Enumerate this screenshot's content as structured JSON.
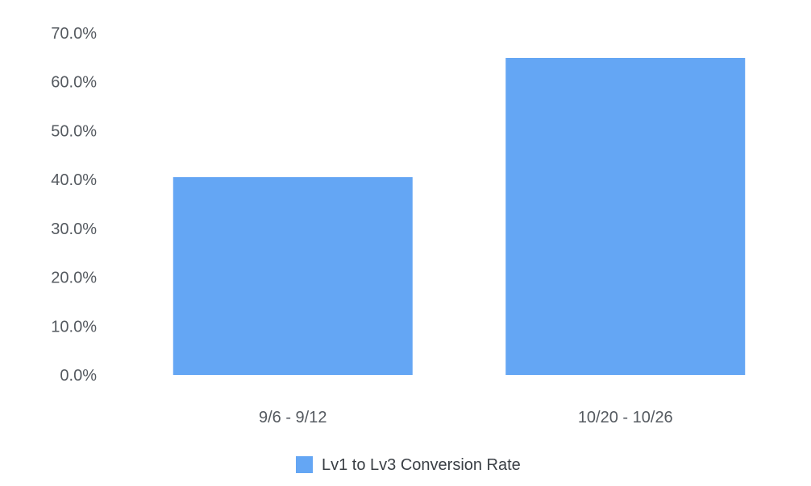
{
  "chart_data": {
    "type": "bar",
    "categories": [
      "9/6 - 9/12",
      "10/20 - 10/26"
    ],
    "series": [
      {
        "name": "Lv1 to Lv3 Conversion Rate",
        "values": [
          40.5,
          64.9
        ],
        "color": "#64a6f4"
      }
    ],
    "ylim": [
      0,
      70
    ],
    "yticks": [
      0,
      10,
      20,
      30,
      40,
      50,
      60,
      70
    ],
    "ytick_labels": [
      "0.0%",
      "10.0%",
      "20.0%",
      "30.0%",
      "40.0%",
      "50.0%",
      "60.0%",
      "70.0%"
    ],
    "grid": false,
    "legend": "bottom-center",
    "title": "",
    "xlabel": "",
    "ylabel": ""
  }
}
